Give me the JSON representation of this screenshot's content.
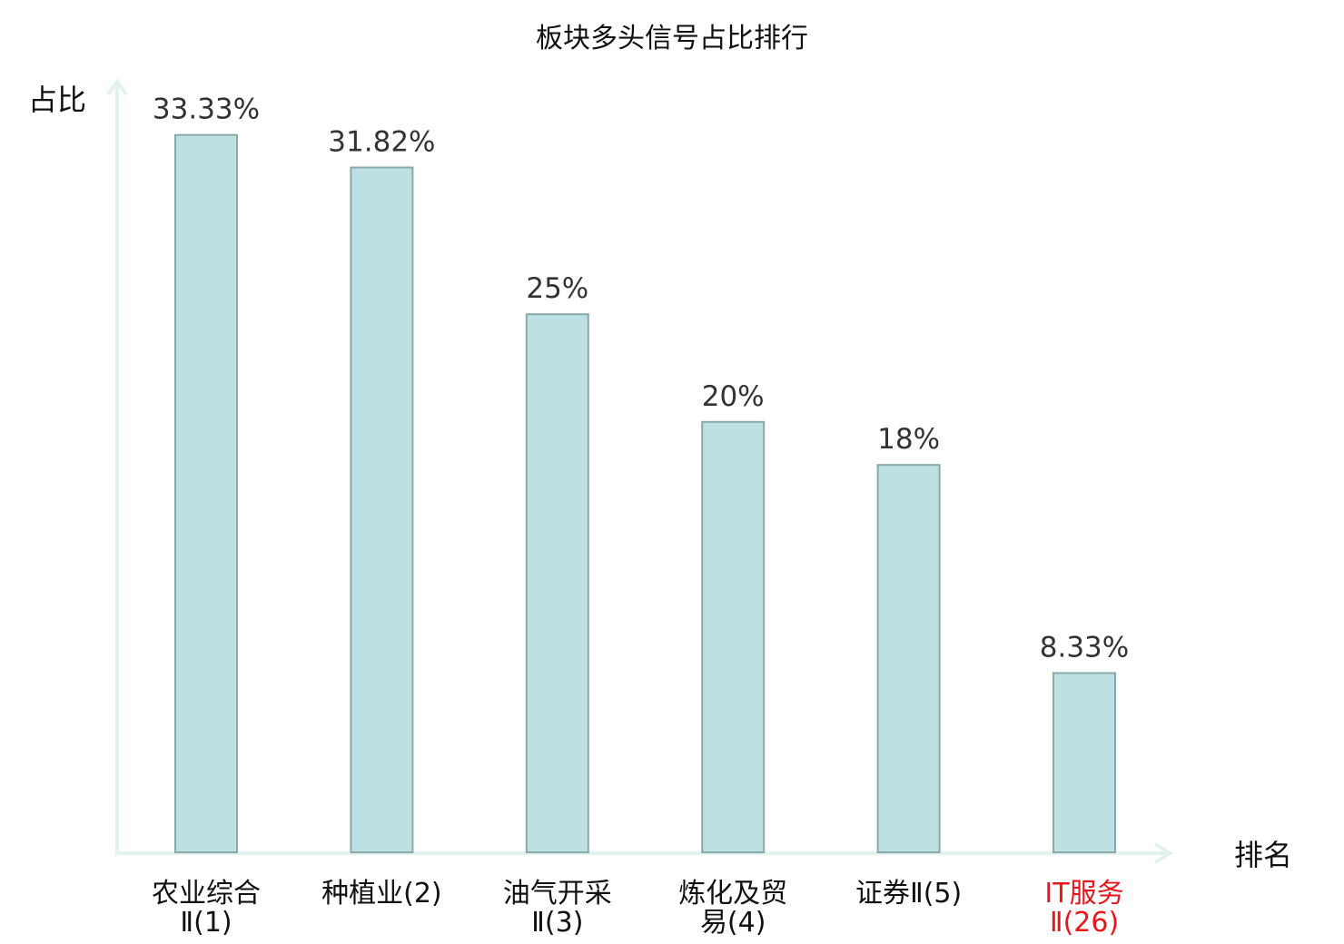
{
  "chart_data": {
    "type": "bar",
    "title": "板块多头信号占比排行",
    "ylabel": "占比",
    "xlabel": "排名",
    "categories": [
      [
        "农业综合",
        "Ⅱ(1)"
      ],
      [
        "种植业(2)"
      ],
      [
        "油气开采",
        "Ⅱ(3)"
      ],
      [
        "炼化及贸",
        "易(4)"
      ],
      [
        "证券Ⅱ(5)"
      ],
      [
        "IT服务",
        "Ⅱ(26)"
      ]
    ],
    "values": [
      33.33,
      31.82,
      25,
      20,
      18,
      8.33
    ],
    "value_labels": [
      "33.33%",
      "31.82%",
      "25%",
      "20%",
      "18%",
      "8.33%"
    ],
    "highlight_index": 5,
    "highlight_color": "#e8161b",
    "bar_color": "#bde0e3",
    "ylim": [
      0,
      34.5
    ],
    "grid": false
  }
}
